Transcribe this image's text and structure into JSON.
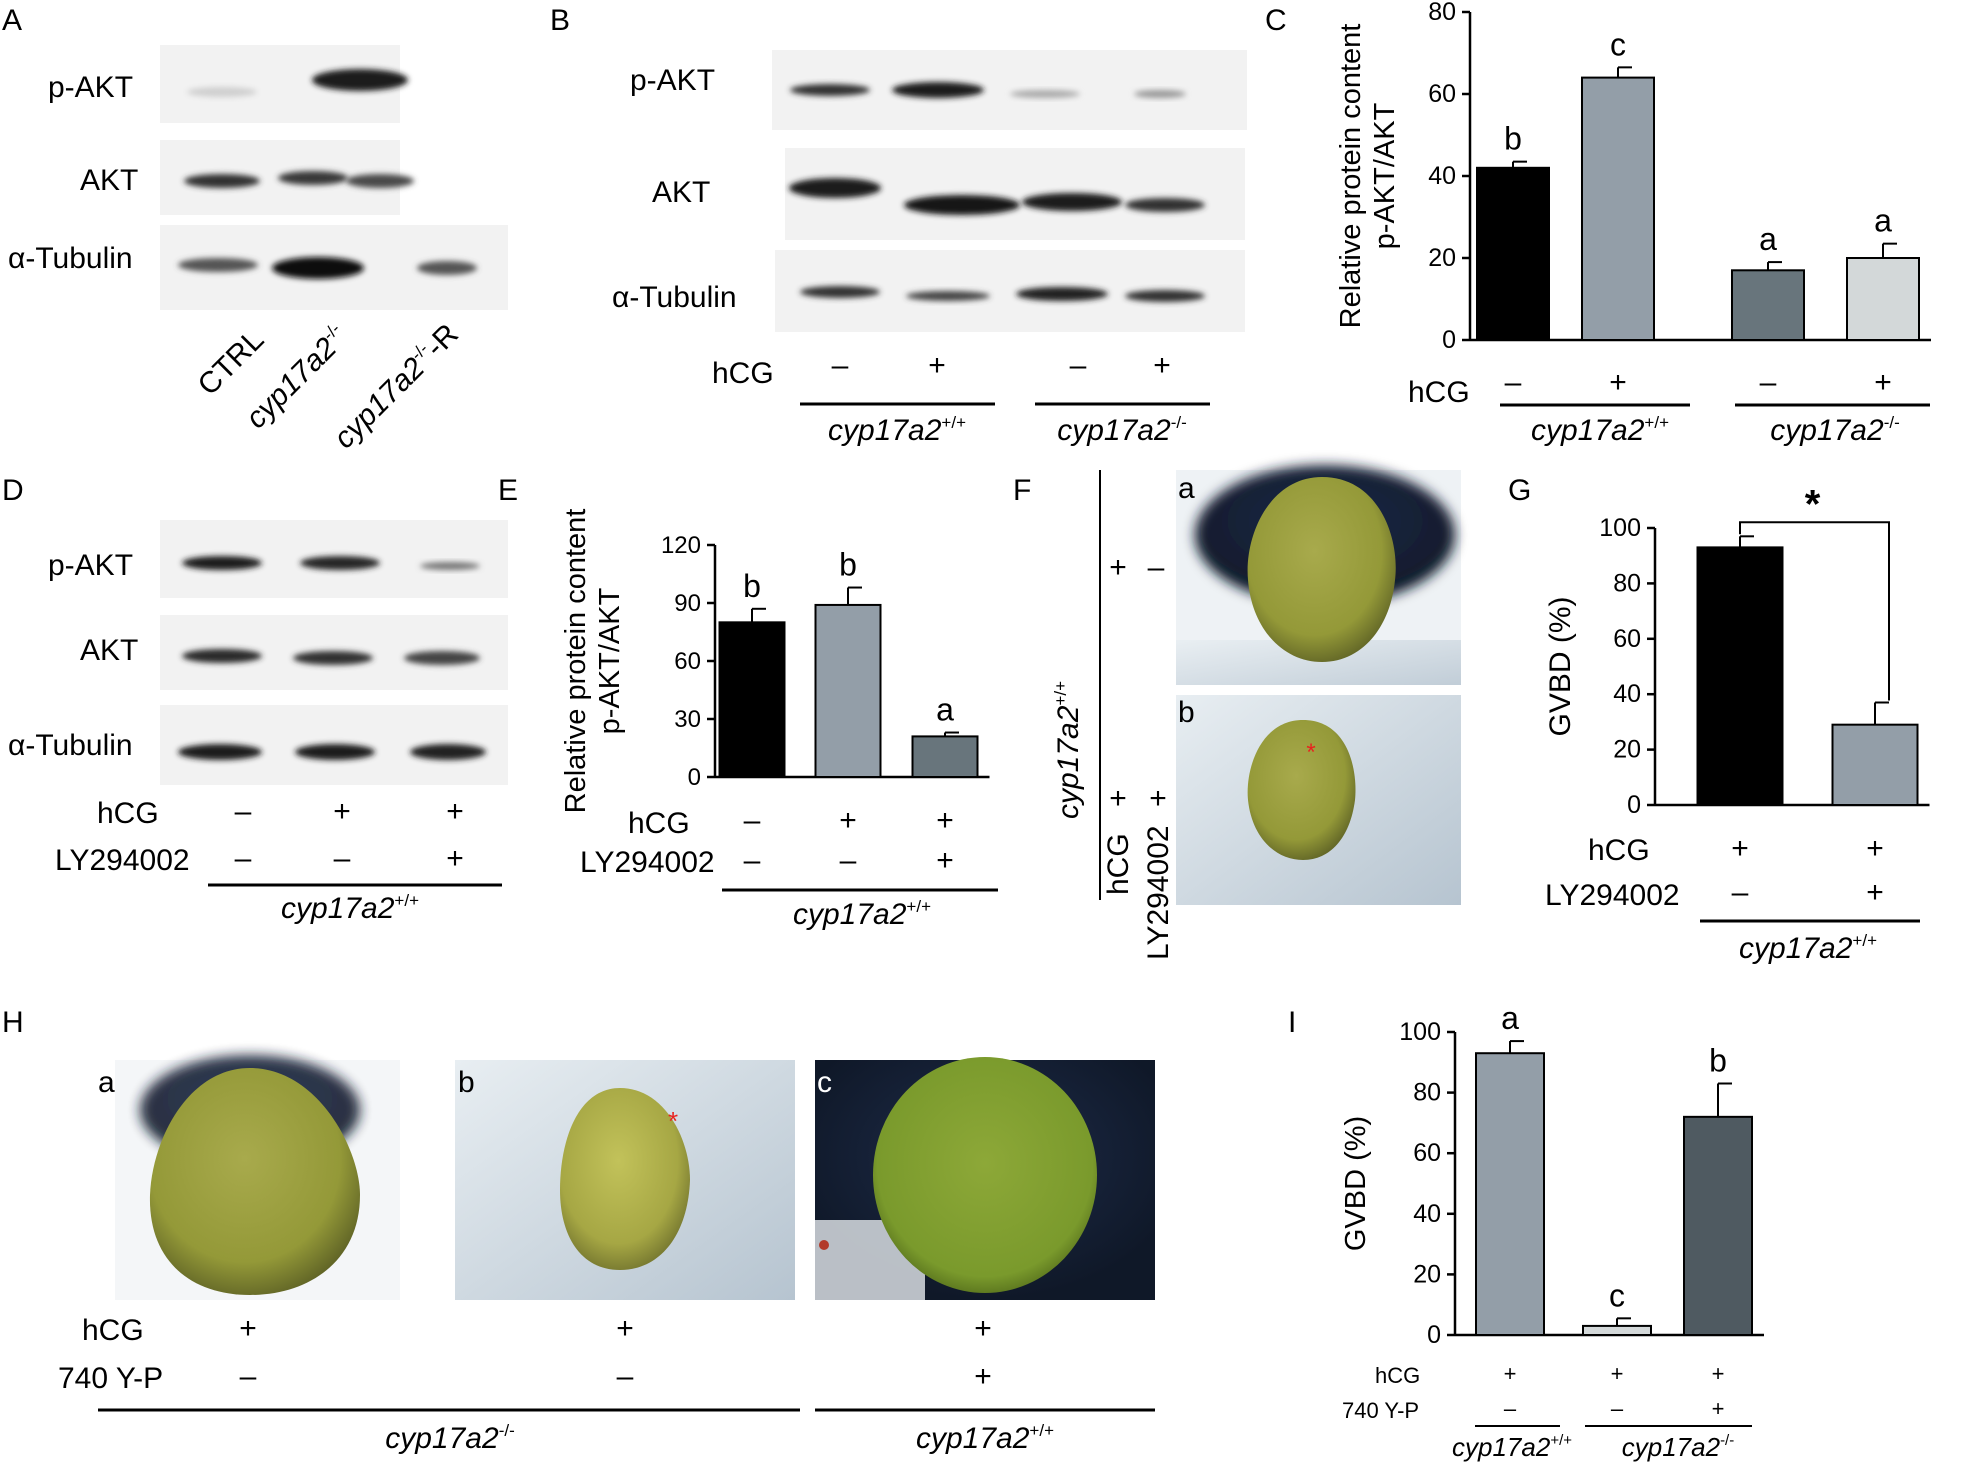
{
  "panel_labels": {
    "A": "A",
    "B": "B",
    "C": "C",
    "D": "D",
    "E": "E",
    "F": "F",
    "G": "G",
    "H": "H",
    "I": "I"
  },
  "common": {
    "hcg": "hCG",
    "ly": "LY294002",
    "yp": "740 Y-P",
    "plus": "+",
    "minus": "–",
    "gene": "cyp17a2",
    "wt_sup": "+/+",
    "ko_sup": "-/-",
    "ko_r_sup": "-/-",
    "r_suffix": "-R",
    "ctrl": "CTRL"
  },
  "blots": {
    "pakt": "p-AKT",
    "akt": "AKT",
    "tub": "α-Tubulin"
  },
  "micro": {
    "a": "a",
    "b": "b",
    "c": "c",
    "red_star": "*"
  },
  "chart_data": [
    {
      "id": "C",
      "type": "bar",
      "ylabel": "Relative protein content p-AKT/AKT",
      "ylabel_line1": "Relative protein content",
      "ylabel_line2": "p-AKT/AKT",
      "ylim": [
        0,
        80
      ],
      "yticks": [
        "0",
        "20",
        "40",
        "60",
        "80"
      ],
      "categories": [
        "cyp17a2+/+ hCG −",
        "cyp17a2+/+ hCG +",
        "cyp17a2-/- hCG −",
        "cyp17a2-/- hCG +"
      ],
      "values": [
        42,
        64,
        17,
        20
      ],
      "errors": [
        1.5,
        2.5,
        2,
        3.5
      ],
      "letters": [
        "b",
        "c",
        "a",
        "a"
      ],
      "colors": [
        "#000000",
        "#939ea8",
        "#68757c",
        "#d3d8d9"
      ]
    },
    {
      "id": "E",
      "type": "bar",
      "ylabel": "Relative protein content p-AKT/AKT",
      "ylabel_line1": "Relative protein content",
      "ylabel_line2": "p-AKT/AKT",
      "ylim": [
        0,
        120
      ],
      "yticks": [
        "0",
        "30",
        "60",
        "90",
        "120"
      ],
      "categories": [
        "hCG − LY294002 −",
        "hCG + LY294002 −",
        "hCG + LY294002 +"
      ],
      "values": [
        80,
        89,
        21
      ],
      "errors": [
        7,
        9,
        2
      ],
      "letters": [
        "b",
        "b",
        "a"
      ],
      "colors": [
        "#000000",
        "#939ea8",
        "#68757c"
      ]
    },
    {
      "id": "G",
      "type": "bar",
      "ylabel": "GVBD (%)",
      "ylim": [
        0,
        100
      ],
      "yticks": [
        "0",
        "20",
        "40",
        "60",
        "80",
        "100"
      ],
      "categories": [
        "hCG + LY294002 −",
        "hCG + LY294002 +"
      ],
      "values": [
        93,
        29
      ],
      "errors": [
        4,
        8
      ],
      "significance": "*",
      "colors": [
        "#000000",
        "#939ea8"
      ]
    },
    {
      "id": "I",
      "type": "bar",
      "ylabel": "GVBD (%)",
      "ylim": [
        0,
        100
      ],
      "yticks": [
        "0",
        "20",
        "40",
        "60",
        "80",
        "100"
      ],
      "categories": [
        "cyp17a2+/+ hCG + 740 Y-P −",
        "cyp17a2-/- hCG + 740 Y-P −",
        "cyp17a2-/- hCG + 740 Y-P +"
      ],
      "values": [
        93,
        3,
        72
      ],
      "errors": [
        4,
        2.5,
        11
      ],
      "letters": [
        "a",
        "c",
        "b"
      ],
      "colors": [
        "#939ea8",
        "#d3d8d9",
        "#4f5a61"
      ]
    }
  ]
}
